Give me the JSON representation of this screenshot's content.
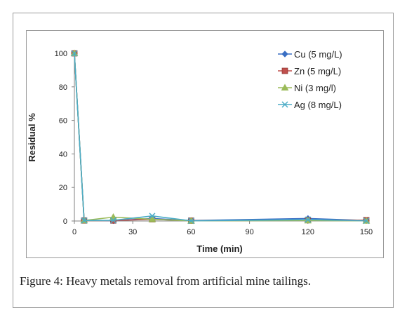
{
  "chart_data": {
    "type": "line",
    "xlabel": "Time  (min)",
    "ylabel": "Residual %",
    "xlim": [
      0,
      150
    ],
    "ylim": [
      0,
      100
    ],
    "xticks": [
      0,
      30,
      60,
      90,
      120,
      150
    ],
    "yticks": [
      0,
      20,
      40,
      60,
      80,
      100
    ],
    "grid": false,
    "legend_position": "top-right",
    "series": [
      {
        "name": "Cu (5 mg/L)",
        "color": "#3a6fc4",
        "marker": "diamond",
        "x": [
          0,
          5,
          20,
          40,
          60,
          120,
          150
        ],
        "y": [
          100,
          0.5,
          0.2,
          1.5,
          0.3,
          1.5,
          0.3
        ]
      },
      {
        "name": "Zn (5 mg/L)",
        "color": "#c0504d",
        "marker": "square",
        "x": [
          0,
          5,
          20,
          40,
          60,
          120,
          150
        ],
        "y": [
          100,
          0.3,
          0.3,
          1.0,
          0.2,
          0.5,
          0.5
        ]
      },
      {
        "name": "Ni (3 mg/l)",
        "color": "#9bbb59",
        "marker": "triangle",
        "x": [
          0,
          5,
          20,
          40,
          60,
          120,
          150
        ],
        "y": [
          100,
          0.3,
          2.3,
          1.0,
          0.1,
          0.3,
          0.1
        ]
      },
      {
        "name": "Ag (8 mg/L)",
        "color": "#4bacc6",
        "marker": "cross",
        "x": [
          0,
          5,
          20,
          40,
          60,
          120,
          150
        ],
        "y": [
          100,
          0.3,
          0.4,
          3.0,
          0.1,
          0.8,
          0.1
        ]
      }
    ]
  },
  "caption": {
    "label": "Figure 4:",
    "text": " Heavy metals removal from artificial mine tailings."
  }
}
